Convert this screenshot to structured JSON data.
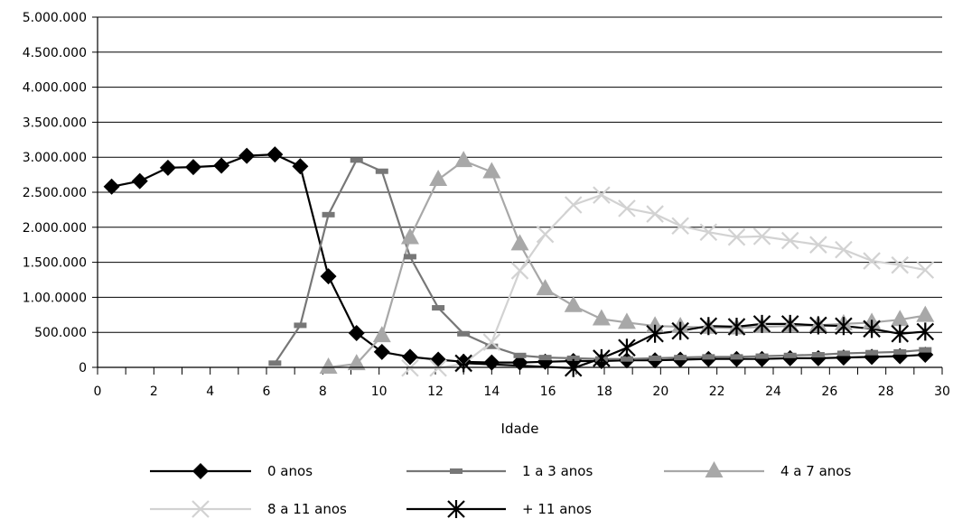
{
  "chart_data": {
    "type": "line",
    "title": "",
    "xlabel": "Idade",
    "ylabel": "",
    "xlim": [
      0,
      30
    ],
    "ylim": [
      0,
      5000000
    ],
    "x_ticks": [
      0,
      2,
      4,
      6,
      8,
      10,
      12,
      14,
      16,
      18,
      20,
      22,
      24,
      26,
      28,
      30
    ],
    "x_tick_labels": [
      "0",
      "2",
      "4",
      "6",
      "8",
      "10",
      "12",
      "14",
      "16",
      "18",
      "20",
      "22",
      "24",
      "26",
      "28",
      "30"
    ],
    "y_ticks": [
      0,
      500000,
      1000000,
      1500000,
      2000000,
      2500000,
      3000000,
      3500000,
      4000000,
      4500000,
      5000000
    ],
    "y_tick_labels": [
      "0",
      "500.000",
      "1.00.0000",
      "1.500.000",
      "2.000.000",
      "2.500.000",
      "3.000.000",
      "3.500.000",
      "4.000.000",
      "4.500.000",
      "5.000.000"
    ],
    "grid": "horizontal",
    "legend_position": "bottom",
    "series": [
      {
        "name": "0 anos",
        "color": "#000000",
        "marker": "diamond",
        "x": [
          0.5,
          1.5,
          2.5,
          3.4,
          4.4,
          5.3,
          6.3,
          7.2,
          8.2,
          9.2,
          10.1,
          11.1,
          12.1,
          13.0,
          14.0,
          15.0,
          15.9,
          16.9,
          17.9,
          18.8,
          19.8,
          20.7,
          21.7,
          22.7,
          23.6,
          24.6,
          25.6,
          26.5,
          27.5,
          28.5,
          29.4
        ],
        "values": [
          2580000,
          2660000,
          2850000,
          2860000,
          2880000,
          3020000,
          3040000,
          2870000,
          1300000,
          490000,
          220000,
          150000,
          110000,
          80000,
          70000,
          70000,
          80000,
          90000,
          90000,
          100000,
          100000,
          110000,
          120000,
          120000,
          120000,
          130000,
          130000,
          140000,
          150000,
          160000,
          180000
        ]
      },
      {
        "name": "1 a 3 anos",
        "color": "#777777",
        "marker": "dash",
        "x": [
          6.3,
          7.2,
          8.2,
          9.2,
          10.1,
          11.1,
          12.1,
          13.0,
          14.0,
          15.0,
          15.9,
          16.9,
          17.9,
          18.8,
          19.8,
          20.7,
          21.7,
          22.7,
          23.6,
          24.6,
          25.6,
          26.5,
          27.5,
          28.5,
          29.4
        ],
        "values": [
          60000,
          600000,
          2180000,
          2960000,
          2800000,
          1580000,
          850000,
          480000,
          300000,
          170000,
          140000,
          130000,
          120000,
          120000,
          130000,
          140000,
          150000,
          150000,
          160000,
          170000,
          180000,
          200000,
          210000,
          220000,
          250000
        ]
      },
      {
        "name": "4 a 7 anos",
        "color": "#a8a8a8",
        "marker": "triangle",
        "x": [
          8.2,
          9.2,
          10.1,
          11.1,
          12.1,
          13.0,
          14.0,
          15.0,
          15.9,
          16.9,
          17.9,
          18.8,
          19.8,
          20.7,
          21.7,
          22.7,
          23.6,
          24.6,
          25.6,
          26.5,
          27.5,
          28.5,
          29.4
        ],
        "values": [
          0,
          50000,
          450000,
          1850000,
          2680000,
          2950000,
          2790000,
          1760000,
          1120000,
          880000,
          690000,
          640000,
          590000,
          580000,
          570000,
          560000,
          580000,
          590000,
          600000,
          620000,
          640000,
          680000,
          740000
        ]
      },
      {
        "name": "8 a 11 anos",
        "color": "#d2d2d2",
        "marker": "x",
        "x": [
          11.1,
          12.1,
          13.0,
          14.0,
          15.0,
          15.9,
          16.9,
          17.9,
          18.8,
          19.8,
          20.7,
          21.7,
          22.7,
          23.6,
          24.6,
          25.6,
          26.5,
          27.5,
          28.5,
          29.4
        ],
        "values": [
          -10000,
          -10000,
          50000,
          360000,
          1380000,
          1900000,
          2320000,
          2460000,
          2270000,
          2190000,
          2020000,
          1930000,
          1860000,
          1870000,
          1810000,
          1750000,
          1680000,
          1520000,
          1460000,
          1390000
        ]
      },
      {
        "name": "+ 11 anos",
        "color": "#000000",
        "marker": "asterisk",
        "x": [
          13.0,
          16.9,
          17.9,
          18.8,
          19.8,
          20.7,
          21.7,
          22.7,
          23.6,
          24.6,
          25.6,
          26.5,
          27.5,
          28.5,
          29.4
        ],
        "values": [
          60000,
          -10000,
          130000,
          280000,
          480000,
          520000,
          590000,
          580000,
          620000,
          620000,
          600000,
          590000,
          550000,
          480000,
          510000
        ]
      }
    ]
  }
}
